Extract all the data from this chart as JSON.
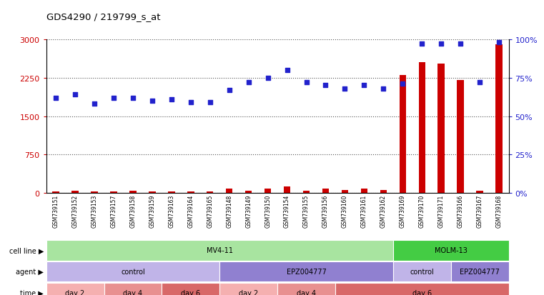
{
  "title": "GDS4290 / 219799_s_at",
  "samples": [
    "GSM739151",
    "GSM739152",
    "GSM739153",
    "GSM739157",
    "GSM739158",
    "GSM739159",
    "GSM739163",
    "GSM739164",
    "GSM739165",
    "GSM739148",
    "GSM739149",
    "GSM739150",
    "GSM739154",
    "GSM739155",
    "GSM739156",
    "GSM739160",
    "GSM739161",
    "GSM739162",
    "GSM739169",
    "GSM739170",
    "GSM739171",
    "GSM739166",
    "GSM739167",
    "GSM739168"
  ],
  "counts": [
    30,
    50,
    25,
    25,
    40,
    30,
    25,
    25,
    25,
    90,
    40,
    80,
    130,
    40,
    80,
    55,
    85,
    55,
    2300,
    2550,
    2520,
    2200,
    50,
    2900
  ],
  "percentile": [
    62,
    64,
    58,
    62,
    62,
    60,
    61,
    59,
    59,
    67,
    72,
    75,
    80,
    72,
    70,
    68,
    70,
    68,
    71,
    97,
    97,
    97,
    72,
    98
  ],
  "bar_color": "#cc0000",
  "dot_color": "#2222cc",
  "ylim_left": [
    0,
    3000
  ],
  "ylim_right": [
    0,
    100
  ],
  "yticks_left": [
    0,
    750,
    1500,
    2250,
    3000
  ],
  "yticks_right": [
    0,
    25,
    50,
    75,
    100
  ],
  "ytick_left_labels": [
    "0",
    "750",
    "1500",
    "2250",
    "3000"
  ],
  "ytick_right_labels": [
    "0%",
    "25%",
    "50%",
    "75%",
    "100%"
  ],
  "cell_line_blocks": [
    {
      "label": "MV4-11",
      "start": 0,
      "end": 18,
      "color": "#a8e4a0"
    },
    {
      "label": "MOLM-13",
      "start": 18,
      "end": 24,
      "color": "#44cc44"
    }
  ],
  "agent_blocks": [
    {
      "label": "control",
      "start": 0,
      "end": 9,
      "color": "#c0b4e8"
    },
    {
      "label": "EPZ004777",
      "start": 9,
      "end": 18,
      "color": "#9080d0"
    },
    {
      "label": "control",
      "start": 18,
      "end": 21,
      "color": "#c0b4e8"
    },
    {
      "label": "EPZ004777",
      "start": 21,
      "end": 24,
      "color": "#9080d0"
    }
  ],
  "time_blocks": [
    {
      "label": "day 2",
      "start": 0,
      "end": 3,
      "color": "#f5b0b0"
    },
    {
      "label": "day 4",
      "start": 3,
      "end": 6,
      "color": "#e89090"
    },
    {
      "label": "day 6",
      "start": 6,
      "end": 9,
      "color": "#d86868"
    },
    {
      "label": "day 2",
      "start": 9,
      "end": 12,
      "color": "#f5b0b0"
    },
    {
      "label": "day 4",
      "start": 12,
      "end": 15,
      "color": "#e89090"
    },
    {
      "label": "day 6",
      "start": 15,
      "end": 24,
      "color": "#d86868"
    }
  ],
  "legend_count_color": "#cc0000",
  "legend_pct_color": "#2222cc",
  "background_color": "#ffffff",
  "dotted_line_color": "#555555",
  "bar_width": 0.35,
  "dot_size": 16
}
